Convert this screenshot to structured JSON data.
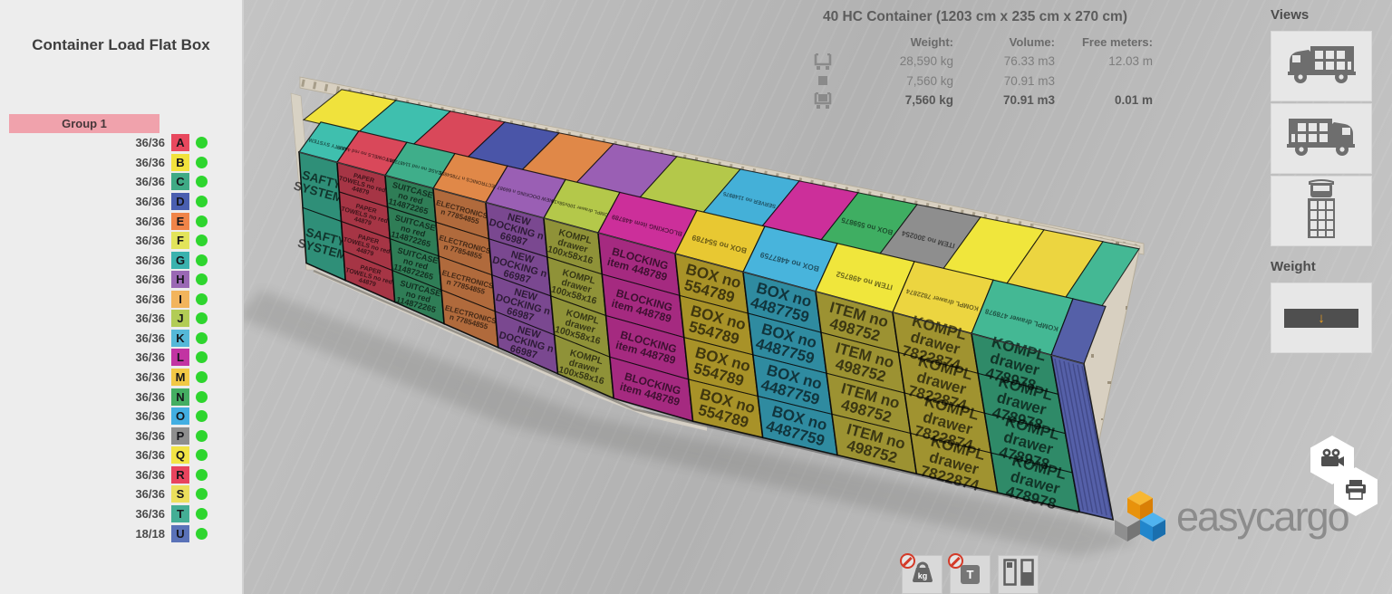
{
  "sidebar": {
    "title": "Container Load Flat Box",
    "group": {
      "label": "Group 1",
      "color": "#f0a2ac"
    },
    "dot_color": "#2ed52e",
    "items": [
      {
        "count": "36/36",
        "letter": "A",
        "color": "#e8485e"
      },
      {
        "count": "36/36",
        "letter": "B",
        "color": "#f2e23c"
      },
      {
        "count": "36/36",
        "letter": "C",
        "color": "#3faa85"
      },
      {
        "count": "36/36",
        "letter": "D",
        "color": "#4a5fb0"
      },
      {
        "count": "36/36",
        "letter": "E",
        "color": "#f08448"
      },
      {
        "count": "36/36",
        "letter": "F",
        "color": "#e2e45a"
      },
      {
        "count": "36/36",
        "letter": "G",
        "color": "#3ab2ae"
      },
      {
        "count": "36/36",
        "letter": "H",
        "color": "#9a68b4"
      },
      {
        "count": "36/36",
        "letter": "I",
        "color": "#f2b45c"
      },
      {
        "count": "36/36",
        "letter": "J",
        "color": "#b2cc55"
      },
      {
        "count": "36/36",
        "letter": "K",
        "color": "#55b8d8"
      },
      {
        "count": "36/36",
        "letter": "L",
        "color": "#c234a2"
      },
      {
        "count": "36/36",
        "letter": "M",
        "color": "#f2c845"
      },
      {
        "count": "36/36",
        "letter": "N",
        "color": "#44ae62"
      },
      {
        "count": "36/36",
        "letter": "O",
        "color": "#42aee2"
      },
      {
        "count": "36/36",
        "letter": "P",
        "color": "#8e8e8e"
      },
      {
        "count": "36/36",
        "letter": "Q",
        "color": "#f2e445"
      },
      {
        "count": "36/36",
        "letter": "R",
        "color": "#e8445e"
      },
      {
        "count": "36/36",
        "letter": "S",
        "color": "#ece05c"
      },
      {
        "count": "36/36",
        "letter": "T",
        "color": "#44ae95"
      },
      {
        "count": "18/18",
        "letter": "U",
        "color": "#5a72b8"
      }
    ]
  },
  "info": {
    "title": "40 HC Container (1203 cm x 235 cm x 270 cm)",
    "columns": [
      "Weight:",
      "Volume:",
      "Free meters:"
    ],
    "rows": [
      {
        "icon": "empty-container-icon",
        "weight": "28,590 kg",
        "volume": "76.33 m3",
        "free": "12.03 m",
        "bold": false
      },
      {
        "icon": "cargo-item-icon",
        "weight": "7,560 kg",
        "volume": "70.91 m3",
        "free": "",
        "bold": false
      },
      {
        "icon": "loaded-container-icon",
        "weight": "7,560 kg",
        "volume": "70.91 m3",
        "free": "0.01 m",
        "bold": true
      }
    ]
  },
  "views_panel": {
    "title": "Views",
    "buttons": [
      {
        "icon": "truck-side-cab-left-icon"
      },
      {
        "icon": "truck-side-cab-right-icon"
      },
      {
        "icon": "truck-top-view-icon"
      }
    ]
  },
  "weight_panel": {
    "title": "Weight",
    "icon": "axle-load-arrow-icon",
    "arrow": "↓",
    "arrow_color": "#f5a31e"
  },
  "toolbar": {
    "buttons": [
      {
        "icon": "hide-weight-kg-icon",
        "label": "kg"
      },
      {
        "icon": "hide-weight-t-icon",
        "label": "T"
      },
      {
        "icon": "fill-report-boxes-icon",
        "label": ""
      }
    ]
  },
  "hex_buttons": [
    {
      "icon": "video-camera-icon"
    },
    {
      "icon": "printer-icon"
    }
  ],
  "logo": {
    "text": "easycargo",
    "cube_orange": "#f5a623",
    "cube_gray": "#a0a0a0",
    "cube_blue": "#2f9be0"
  },
  "scene": {
    "container_frame_color": "#d8d0c1",
    "end_wall_color": "#d8d0c1",
    "columns": [
      {
        "lines": [
          "SAFTY",
          "SYSTEM"
        ],
        "color": "#2f8f78",
        "rows": 2
      },
      {
        "lines": [
          "PAPER",
          "TOWELS no red",
          "44879"
        ],
        "color": "#a63545",
        "rows": 4
      },
      {
        "lines": [
          "SUITCASE",
          "no red",
          "114872265"
        ],
        "color": "#2f7d56",
        "rows": 4
      },
      {
        "lines": [
          "ELECTRONICS",
          "n 77854855"
        ],
        "color": "#b06a3c",
        "rows": 4
      },
      {
        "lines": [
          "NEW",
          "DOCKING n",
          "66987"
        ],
        "color": "#7a4890",
        "rows": 4
      },
      {
        "lines": [
          "KOMPL",
          "drawer",
          "100x58x16"
        ],
        "color": "#8f9238",
        "rows": 4
      },
      {
        "lines": [
          "BLOCKING",
          "item 448789"
        ],
        "color": "#a52a80",
        "rows": 4
      },
      {
        "lines": [
          "BOX no",
          "554789"
        ],
        "color": "#a89228",
        "rows": 4
      },
      {
        "lines": [
          "BOX no",
          "4487759"
        ],
        "color": "#2f8ba0",
        "rows": 4
      },
      {
        "lines": [
          "ITEM no",
          "498752"
        ],
        "color": "#9c9232",
        "rows": 4
      },
      {
        "lines": [
          "KOMPL",
          "drawer",
          "7822874"
        ],
        "color": "#a09330",
        "rows": 4
      },
      {
        "lines": [
          "KOMPL",
          "drawer",
          "478978"
        ],
        "color": "#2f8a68",
        "rows": 4
      },
      {
        "lines": [],
        "color": "#5560a8",
        "rows": 0
      }
    ],
    "top_front": [
      {
        "color": "#3fbfae",
        "label": "SAFTY SYSTEM"
      },
      {
        "color": "#d9485a",
        "label": "PAPER TOWELS no red 44879"
      },
      {
        "color": "#3fae8a",
        "label": "SUITCASE no red 114872265"
      },
      {
        "color": "#e08848",
        "label": "ELECTRONICS n 77854855"
      },
      {
        "color": "#9a5fb4",
        "label": "NEW DOCKING n 66987"
      },
      {
        "color": "#b4c84a",
        "label": "KOMPL drawer 100x58x16"
      },
      {
        "color": "#cc2f9a",
        "label": "BLOCKING item 448789"
      },
      {
        "color": "#e8c832",
        "label": "BOX no 554789"
      },
      {
        "color": "#48b4dc",
        "label": "BOX no 4487759"
      },
      {
        "color": "#f0e63c",
        "label": "ITEM no 498752"
      },
      {
        "color": "#ecd540",
        "label": "KOMPL drawer 7822874"
      },
      {
        "color": "#44b894",
        "label": "KOMPL drawer 478978"
      },
      {
        "color": "#5560a8",
        "label": ""
      }
    ],
    "top_back": [
      {
        "color": "#f0e23c",
        "label": ""
      },
      {
        "color": "#3fbfae",
        "label": ""
      },
      {
        "color": "#d9485a",
        "label": ""
      },
      {
        "color": "#4a55a8",
        "label": ""
      },
      {
        "color": "#e08848",
        "label": ""
      },
      {
        "color": "#9a5fb4",
        "label": ""
      },
      {
        "color": "#b4c84a",
        "label": ""
      },
      {
        "color": "#44b0d8",
        "label": "SERVER no 1148975"
      },
      {
        "color": "#cc2f9a",
        "label": ""
      },
      {
        "color": "#3fae62",
        "label": "BOX no 559875"
      },
      {
        "color": "#8e8e8e",
        "label": "ITEM no 300254"
      },
      {
        "color": "#f0e63c",
        "label": ""
      },
      {
        "color": "#ecd540",
        "label": ""
      },
      {
        "color": "#44b894",
        "label": ""
      }
    ]
  }
}
